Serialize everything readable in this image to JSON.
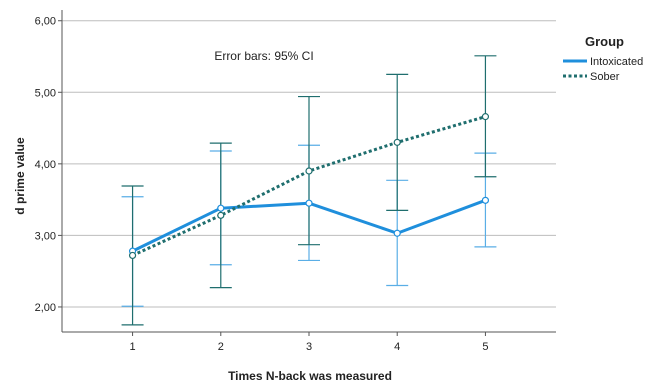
{
  "chart_data": {
    "type": "line",
    "xlabel": "Times N-back was measured",
    "ylabel": "d prime value",
    "x": [
      1,
      2,
      3,
      4,
      5
    ],
    "ylim": [
      1.65,
      6.15
    ],
    "yticks": [
      2.0,
      3.0,
      4.0,
      5.0,
      6.0
    ],
    "ytick_labels": [
      "2,00",
      "3,00",
      "4,00",
      "5,00",
      "6,00"
    ],
    "xtick_labels": [
      "1",
      "2",
      "3",
      "4",
      "5"
    ],
    "grid": "horizontal",
    "annotation": "Error bars: 95% CI",
    "legend": {
      "title": "Group",
      "placement": "right"
    },
    "series": [
      {
        "name": "Intoxicated",
        "color": "#1f8fdc",
        "style": "solid",
        "values": [
          2.78,
          3.38,
          3.45,
          3.03,
          3.49
        ],
        "ci_low": [
          2.01,
          2.59,
          2.65,
          2.3,
          2.84
        ],
        "ci_high": [
          3.54,
          4.18,
          4.26,
          3.77,
          4.15
        ]
      },
      {
        "name": "Sober",
        "color": "#1f6e6e",
        "style": "dotted",
        "values": [
          2.72,
          3.28,
          3.9,
          4.3,
          4.66
        ],
        "ci_low": [
          1.75,
          2.27,
          2.87,
          3.35,
          3.82
        ],
        "ci_high": [
          3.69,
          4.29,
          4.94,
          5.25,
          5.51
        ]
      }
    ]
  }
}
